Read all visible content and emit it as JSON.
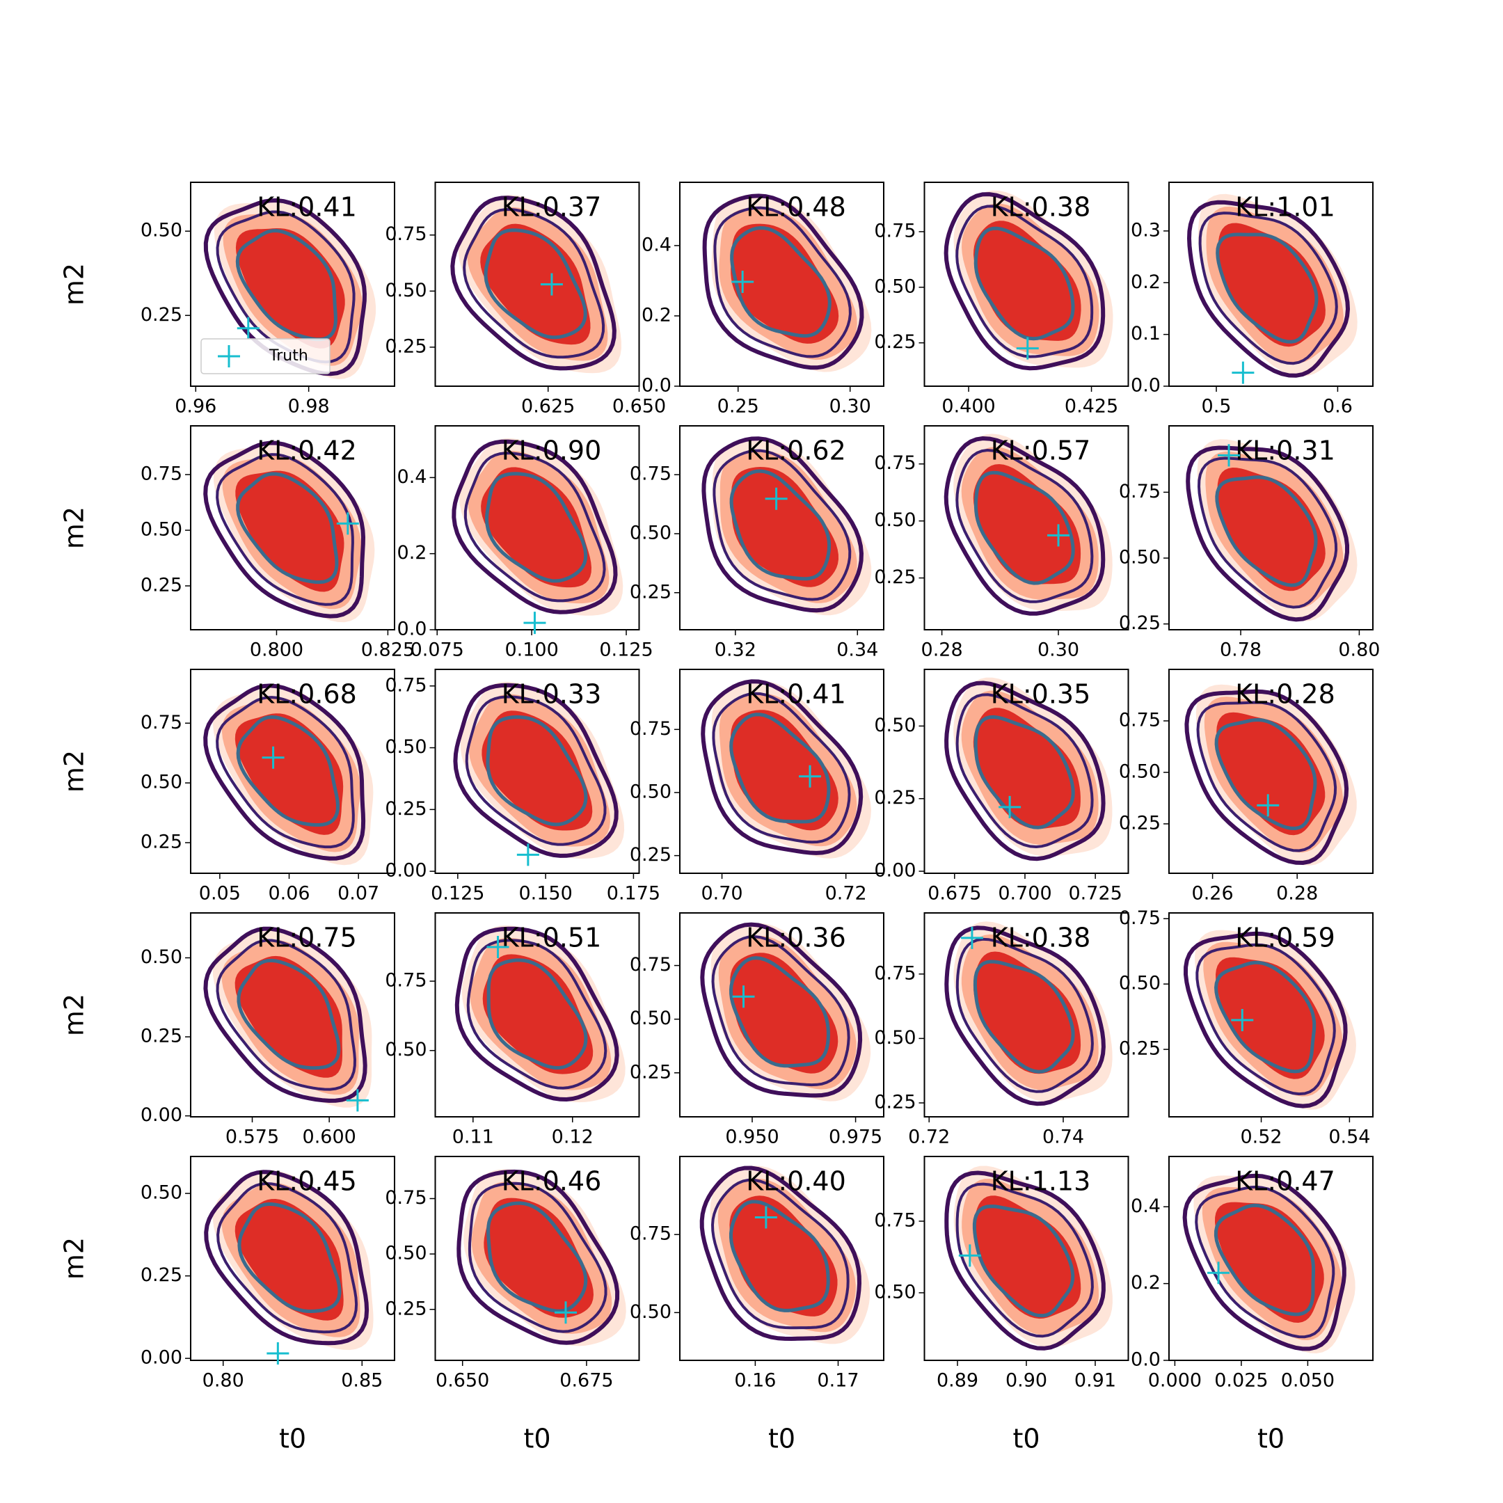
{
  "chart_data": [
    {
      "type": "scatter",
      "title": "KL:0.41",
      "ylabel": "m2",
      "xlim": [
        0.9591,
        0.9952
      ],
      "ylim": [
        0.04,
        0.645
      ],
      "xticks": [
        0.96,
        0.98
      ],
      "yticks": [
        0.25,
        {
          "value": 0.5,
          "label": "0.50"
        }
      ],
      "x": [
        0.9693
      ],
      "series": [
        {
          "name": "Truth",
          "color": "#17becf",
          "values": [
            0.212
          ]
        }
      ]
    },
    {
      "type": "scatter",
      "title": "KL:0.37",
      "xlim": [
        0.594,
        0.65
      ],
      "ylim": [
        0.076,
        0.985
      ],
      "xticks": [
        0.625,
        {
          "value": 0.65,
          "label": "0.650"
        }
      ],
      "yticks": [
        0.25,
        {
          "value": 0.5,
          "label": "0.50"
        },
        0.75
      ],
      "x": [
        0.626
      ],
      "series": [
        {
          "color": "#17becf",
          "values": [
            0.53
          ]
        }
      ]
    },
    {
      "type": "scatter",
      "title": "KL:0.48",
      "xlim": [
        0.224,
        0.315
      ],
      "ylim": [
        0,
        0.58
      ],
      "xticks": [
        0.25,
        {
          "value": 0.3,
          "label": "0.30"
        }
      ],
      "yticks": [
        {
          "value": 0,
          "label": "0.0"
        },
        0.2,
        0.4
      ],
      "x": [
        0.252
      ],
      "series": [
        {
          "color": "#17becf",
          "values": [
            0.297
          ]
        }
      ]
    },
    {
      "type": "scatter",
      "title": "KL:0.38",
      "xlim": [
        0.391,
        0.4325
      ],
      "ylim": [
        0.055,
        0.972
      ],
      "xticks": [
        {
          "value": 0.4,
          "label": "0.400"
        },
        0.425
      ],
      "yticks": [
        0.25,
        {
          "value": 0.5,
          "label": "0.50"
        },
        0.75
      ],
      "x": [
        0.412
      ],
      "series": [
        {
          "color": "#17becf",
          "values": [
            0.225
          ]
        }
      ]
    },
    {
      "type": "scatter",
      "title": "KL:1.01",
      "xlim": [
        0.461,
        0.629
      ],
      "ylim": [
        0,
        0.394
      ],
      "xticks": [
        0.5,
        0.6
      ],
      "yticks": [
        {
          "value": 0,
          "label": "0.0"
        },
        0.1,
        0.2,
        0.3
      ],
      "x": [
        0.522
      ],
      "series": [
        {
          "color": "#17becf",
          "values": [
            0.026
          ]
        }
      ]
    },
    {
      "type": "scatter",
      "title": "KL:0.42",
      "ylabel": "m2",
      "xlim": [
        0.7807,
        0.8265
      ],
      "ylim": [
        0.053,
        0.969
      ],
      "xticks": [
        {
          "value": 0.8,
          "label": "0.800"
        },
        0.825
      ],
      "yticks": [
        0.25,
        {
          "value": 0.5,
          "label": "0.50"
        },
        0.75
      ],
      "x": [
        0.816
      ],
      "series": [
        {
          "color": "#17becf",
          "values": [
            0.53
          ]
        }
      ]
    },
    {
      "type": "scatter",
      "title": "KL:0.90",
      "xlim": [
        0.0745,
        0.1284
      ],
      "ylim": [
        0,
        0.536
      ],
      "xticks": [
        0.075,
        {
          "value": 0.1,
          "label": "0.100"
        },
        0.125
      ],
      "yticks": [
        {
          "value": 0,
          "label": "0.0"
        },
        0.2,
        0.4
      ],
      "x": [
        0.1008
      ],
      "series": [
        {
          "color": "#17becf",
          "values": [
            0.018
          ]
        }
      ]
    },
    {
      "type": "scatter",
      "title": "KL:0.62",
      "xlim": [
        0.3109,
        0.3443
      ],
      "ylim": [
        0.093,
        0.957
      ],
      "xticks": [
        0.32,
        0.34
      ],
      "yticks": [
        0.25,
        {
          "value": 0.5,
          "label": "0.50"
        },
        0.75
      ],
      "x": [
        0.3267
      ],
      "series": [
        {
          "color": "#17becf",
          "values": [
            0.648
          ]
        }
      ]
    },
    {
      "type": "scatter",
      "title": "KL:0.57",
      "xlim": [
        0.277,
        0.312
      ],
      "ylim": [
        0.023,
        0.917
      ],
      "xticks": [
        0.28,
        {
          "value": 0.3,
          "label": "0.30"
        }
      ],
      "yticks": [
        0.25,
        {
          "value": 0.5,
          "label": "0.50"
        },
        0.75
      ],
      "x": [
        0.3
      ],
      "series": [
        {
          "color": "#17becf",
          "values": [
            0.437
          ]
        }
      ]
    },
    {
      "type": "scatter",
      "title": "KL:0.31",
      "xlim": [
        0.7679,
        0.8023
      ],
      "ylim": [
        0.228,
        1.002
      ],
      "xticks": [
        0.78,
        {
          "value": 0.8,
          "label": "0.80"
        }
      ],
      "yticks": [
        0.25,
        {
          "value": 0.5,
          "label": "0.50"
        },
        0.75
      ],
      "x": [
        0.778
      ],
      "series": [
        {
          "color": "#17becf",
          "values": [
            0.89
          ]
        }
      ]
    },
    {
      "type": "scatter",
      "title": "KL:0.68",
      "ylabel": "m2",
      "xlim": [
        0.0458,
        0.0752
      ],
      "ylim": [
        0.122,
        0.975
      ],
      "xticks": [
        0.05,
        0.06,
        0.07
      ],
      "yticks": [
        0.25,
        {
          "value": 0.5,
          "label": "0.50"
        },
        0.75
      ],
      "x": [
        0.0577
      ],
      "series": [
        {
          "color": "#17becf",
          "values": [
            0.606
          ]
        }
      ]
    },
    {
      "type": "scatter",
      "title": "KL:0.33",
      "xlim": [
        0.1186,
        0.1766
      ],
      "ylim": [
        -0.008,
        0.817
      ],
      "xticks": [
        0.125,
        {
          "value": 0.15,
          "label": "0.150"
        },
        0.175
      ],
      "yticks": [
        {
          "value": 0,
          "label": "0.00"
        },
        0.25,
        {
          "value": 0.5,
          "label": "0.50"
        },
        0.75
      ],
      "x": [
        0.145
      ],
      "series": [
        {
          "color": "#17becf",
          "values": [
            0.067
          ]
        }
      ]
    },
    {
      "type": "scatter",
      "title": "KL:0.41",
      "xlim": [
        0.6932,
        0.7261
      ],
      "ylim": [
        0.18,
        0.988
      ],
      "xticks": [
        {
          "value": 0.7,
          "label": "0.70"
        },
        0.72
      ],
      "yticks": [
        0.25,
        {
          "value": 0.5,
          "label": "0.50"
        },
        0.75
      ],
      "x": [
        0.7142
      ],
      "series": [
        {
          "color": "#17becf",
          "values": [
            0.564
          ]
        }
      ]
    },
    {
      "type": "scatter",
      "title": "KL:0.35",
      "xlim": [
        0.6643,
        0.7367
      ],
      "ylim": [
        -0.007,
        0.695
      ],
      "xticks": [
        0.675,
        {
          "value": 0.7,
          "label": "0.700"
        },
        0.725
      ],
      "yticks": [
        {
          "value": 0,
          "label": "0.00"
        },
        0.25,
        {
          "value": 0.5,
          "label": "0.50"
        }
      ],
      "x": [
        0.6946
      ],
      "series": [
        {
          "color": "#17becf",
          "values": [
            0.221
          ]
        }
      ]
    },
    {
      "type": "scatter",
      "title": "KL:0.28",
      "xlim": [
        0.2497,
        0.2979
      ],
      "ylim": [
        0.01,
        1.0
      ],
      "xticks": [
        0.26,
        0.28
      ],
      "yticks": [
        0.25,
        {
          "value": 0.5,
          "label": "0.50"
        },
        0.75
      ],
      "x": [
        0.2731
      ],
      "series": [
        {
          "color": "#17becf",
          "values": [
            0.34
          ]
        }
      ]
    },
    {
      "type": "scatter",
      "title": "KL:0.75",
      "ylabel": "m2",
      "xlim": [
        0.555,
        0.6212
      ],
      "ylim": [
        -0.003,
        0.642
      ],
      "xticks": [
        0.575,
        {
          "value": 0.6,
          "label": "0.600"
        }
      ],
      "yticks": [
        {
          "value": 0,
          "label": "0.00"
        },
        0.25,
        {
          "value": 0.5,
          "label": "0.50"
        }
      ],
      "x": [
        0.6092
      ],
      "series": [
        {
          "color": "#17becf",
          "values": [
            0.049
          ]
        }
      ]
    },
    {
      "type": "scatter",
      "title": "KL:0.51",
      "xlim": [
        0.1062,
        0.1267
      ],
      "ylim": [
        0.261,
        0.996
      ],
      "xticks": [
        0.11,
        0.12
      ],
      "yticks": [
        {
          "value": 0.5,
          "label": "0.50"
        },
        0.75
      ],
      "x": [
        0.1125
      ],
      "series": [
        {
          "color": "#17becf",
          "values": [
            0.873
          ]
        }
      ]
    },
    {
      "type": "scatter",
      "title": "KL:0.36",
      "xlim": [
        0.9325,
        0.9818
      ],
      "ylim": [
        0.045,
        0.995
      ],
      "xticks": [
        {
          "value": 0.95,
          "label": "0.950"
        },
        0.975
      ],
      "yticks": [
        0.25,
        {
          "value": 0.5,
          "label": "0.50"
        },
        0.75
      ],
      "x": [
        0.9479
      ],
      "series": [
        {
          "color": "#17becf",
          "values": [
            0.605
          ]
        }
      ]
    },
    {
      "type": "scatter",
      "title": "KL:0.38",
      "xlim": [
        0.7193,
        0.7497
      ],
      "ylim": [
        0.196,
        0.987
      ],
      "xticks": [
        0.72,
        0.74
      ],
      "yticks": [
        0.25,
        {
          "value": 0.5,
          "label": "0.50"
        },
        0.75
      ],
      "x": [
        0.7264
      ],
      "series": [
        {
          "color": "#17becf",
          "values": [
            0.89
          ]
        }
      ]
    },
    {
      "type": "scatter",
      "title": "KL:0.59",
      "xlim": [
        0.4991,
        0.5453
      ],
      "ylim": [
        -0.008,
        0.772
      ],
      "xticks": [
        0.52,
        0.54
      ],
      "yticks": [
        0.25,
        {
          "value": 0.5,
          "label": "0.50"
        },
        0.75
      ],
      "x": [
        0.5157
      ],
      "series": [
        {
          "color": "#17becf",
          "values": [
            0.362
          ]
        }
      ]
    },
    {
      "type": "scatter",
      "title": "KL:0.45",
      "xlabel": "t0",
      "ylabel": "m2",
      "xlim": [
        0.7883,
        0.8617
      ],
      "ylim": [
        -0.006,
        0.612
      ],
      "xticks": [
        {
          "value": 0.8,
          "label": "0.80"
        },
        0.85
      ],
      "yticks": [
        {
          "value": 0,
          "label": "0.00"
        },
        0.25,
        {
          "value": 0.5,
          "label": "0.50"
        }
      ],
      "x": [
        0.8197
      ],
      "series": [
        {
          "color": "#17becf",
          "values": [
            0.015
          ]
        }
      ]
    },
    {
      "type": "scatter",
      "title": "KL:0.46",
      "xlabel": "t0",
      "xlim": [
        0.6445,
        0.6856
      ],
      "ylim": [
        0.02,
        0.94
      ],
      "xticks": [
        {
          "value": 0.65,
          "label": "0.650"
        },
        0.675
      ],
      "yticks": [
        0.25,
        {
          "value": 0.5,
          "label": "0.50"
        },
        0.75
      ],
      "x": [
        0.6708
      ],
      "series": [
        {
          "color": "#17becf",
          "values": [
            0.236
          ]
        }
      ]
    },
    {
      "type": "scatter",
      "title": "KL:0.40",
      "xlabel": "t0",
      "xlim": [
        0.1509,
        0.1755
      ],
      "ylim": [
        0.347,
        1.0
      ],
      "xticks": [
        0.16,
        0.17
      ],
      "yticks": [
        {
          "value": 0.5,
          "label": "0.50"
        },
        0.75
      ],
      "x": [
        0.1613
      ],
      "series": [
        {
          "color": "#17becf",
          "values": [
            0.805
          ]
        }
      ]
    },
    {
      "type": "scatter",
      "title": "KL:1.13",
      "xlabel": "t0",
      "xlim": [
        0.8852,
        0.9148
      ],
      "ylim": [
        0.264,
        0.976
      ],
      "xticks": [
        0.89,
        {
          "value": 0.9,
          "label": "0.90"
        },
        0.91
      ],
      "yticks": [
        {
          "value": 0.5,
          "label": "0.50"
        },
        0.75
      ],
      "x": [
        0.8918
      ],
      "series": [
        {
          "color": "#17becf",
          "values": [
            0.63
          ]
        }
      ]
    },
    {
      "type": "scatter",
      "title": "KL:0.47",
      "xlabel": "t0",
      "xlim": [
        -0.0022,
        0.0745
      ],
      "ylim": [
        0,
        0.531
      ],
      "xticks": [
        {
          "value": 0,
          "label": "0.000"
        },
        0.025,
        {
          "value": 0.05,
          "label": "0.050"
        }
      ],
      "yticks": [
        {
          "value": 0,
          "label": "0.0"
        },
        0.2,
        0.4
      ],
      "x": [
        0.0164
      ],
      "series": [
        {
          "color": "#17becf",
          "values": [
            0.228
          ]
        }
      ]
    }
  ]
}
